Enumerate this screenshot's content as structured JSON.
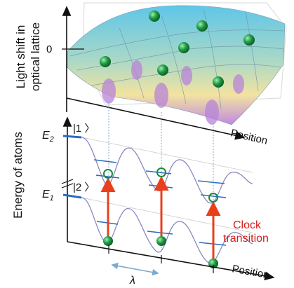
{
  "top_panel": {
    "ylabel_line1": "Light shift in",
    "ylabel_line2": "optical lattice",
    "zero_tick": "0",
    "xlabel": "Position"
  },
  "bottom_panel": {
    "ylabel": "Energy of atoms",
    "e2_label": "E",
    "e2_sub": "2",
    "e1_label": "E",
    "e1_sub": "1",
    "ket1": "|1 〉",
    "ket2": "|2 〉",
    "xlabel": "Position",
    "lambda_label": "λ",
    "clock_line1": "Clock",
    "clock_line2": "transition"
  },
  "colors": {
    "atom": "#1a8a3a",
    "transition_arrow": "#e8401c",
    "clock_text": "#d42020",
    "level_line": "#2a6cc0",
    "potential_curve": "#8a8ac0",
    "lambda_arrow": "#7aaad0"
  }
}
